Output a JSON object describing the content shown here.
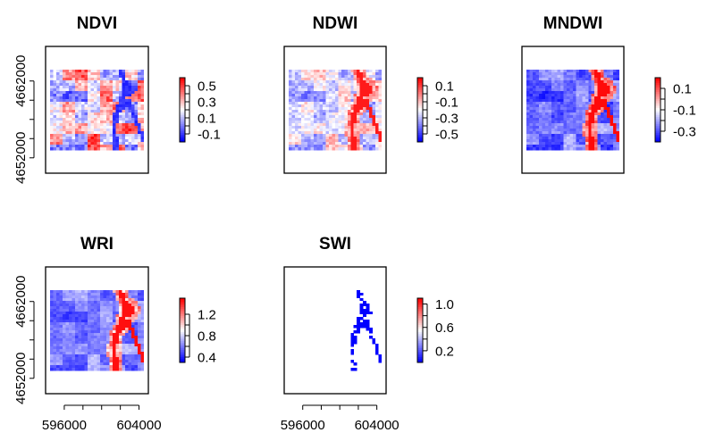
{
  "figure": {
    "y_ticks": [
      "4652000",
      "4662000"
    ],
    "x_ticks": [
      "596000",
      "604000"
    ]
  },
  "colors": {
    "low": "#0000ff",
    "mid": "#ffffff",
    "high": "#ff0000"
  },
  "chart_data": [
    {
      "type": "heatmap",
      "title": "NDVI",
      "legend": {
        "ticks": [
          "0.5",
          "0.3",
          "0.1",
          "-0.1"
        ],
        "range": [
          -0.2,
          0.6
        ]
      },
      "yaxis_visible": true,
      "xaxis_visible": false,
      "ylim": [
        4650000,
        4666500
      ],
      "xlim": [
        594000,
        605000
      ],
      "raster": {
        "xlim": [
          594500,
          604500
        ],
        "ylim": [
          4653000,
          4663500
        ],
        "pattern": "ndvi"
      }
    },
    {
      "type": "heatmap",
      "title": "NDWI",
      "legend": {
        "ticks": [
          "0.1",
          "-0.1",
          "-0.3",
          "-0.5"
        ],
        "range": [
          -0.6,
          0.2
        ]
      },
      "yaxis_visible": false,
      "xaxis_visible": false,
      "ylim": [
        4650000,
        4666500
      ],
      "xlim": [
        594000,
        605000
      ],
      "raster": {
        "xlim": [
          594500,
          604500
        ],
        "ylim": [
          4653000,
          4663500
        ],
        "pattern": "ndwi"
      }
    },
    {
      "type": "heatmap",
      "title": "MNDWI",
      "legend": {
        "ticks": [
          "0.1",
          "-0.1",
          "-0.3"
        ],
        "range": [
          -0.4,
          0.2
        ]
      },
      "yaxis_visible": false,
      "xaxis_visible": false,
      "ylim": [
        4650000,
        4666500
      ],
      "xlim": [
        594000,
        605000
      ],
      "raster": {
        "xlim": [
          594500,
          604500
        ],
        "ylim": [
          4653000,
          4663500
        ],
        "pattern": "mndwi"
      }
    },
    {
      "type": "heatmap",
      "title": "WRI",
      "legend": {
        "ticks": [
          "1.2",
          "0.8",
          "0.4"
        ],
        "range": [
          0.3,
          1.5
        ]
      },
      "yaxis_visible": true,
      "xaxis_visible": true,
      "ylim": [
        4650000,
        4666500
      ],
      "xlim": [
        594000,
        605000
      ],
      "raster": {
        "xlim": [
          594500,
          604500
        ],
        "ylim": [
          4653000,
          4663500
        ],
        "pattern": "wri"
      }
    },
    {
      "type": "heatmap",
      "title": "SWI",
      "legend": {
        "ticks": [
          "1.0",
          "0.6",
          "0.2"
        ],
        "range": [
          0.0,
          1.1
        ]
      },
      "yaxis_visible": false,
      "xaxis_visible": true,
      "ylim": [
        4650000,
        4666500
      ],
      "xlim": [
        594000,
        605000
      ],
      "raster": {
        "xlim": [
          594500,
          604500
        ],
        "ylim": [
          4653000,
          4663500
        ],
        "pattern": "swi"
      }
    }
  ]
}
